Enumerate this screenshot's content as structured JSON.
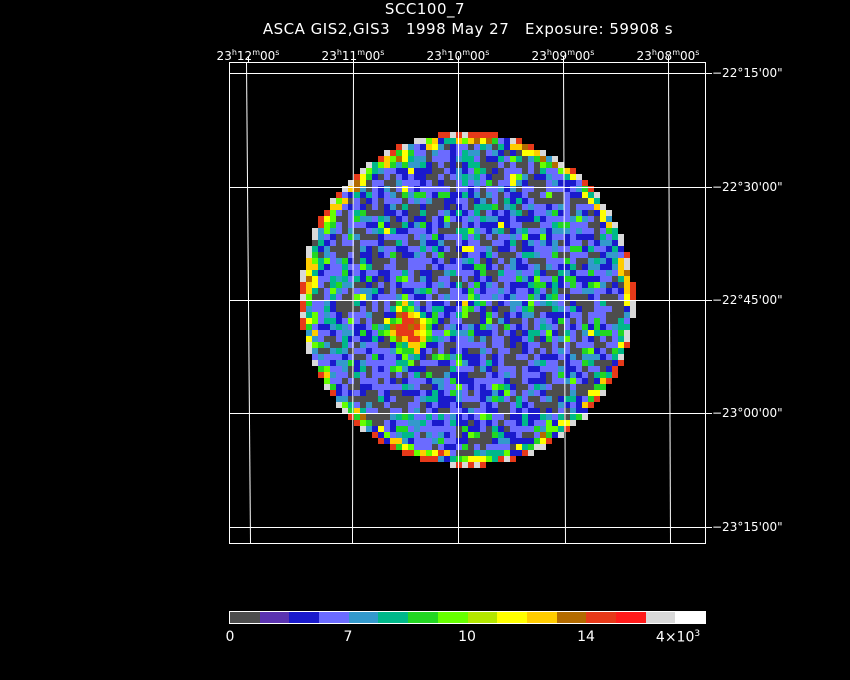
{
  "header": {
    "title": "SCC100_7",
    "subtitle": "ASCA GIS2,GIS3   1998 May 27   Exposure: 59908 s"
  },
  "axes": {
    "ra_ticks": [
      {
        "h": "23",
        "m": "12",
        "s": "00"
      },
      {
        "h": "23",
        "m": "11",
        "s": "00"
      },
      {
        "h": "23",
        "m": "10",
        "s": "00"
      },
      {
        "h": "23",
        "m": "09",
        "s": "00"
      },
      {
        "h": "23",
        "m": "08",
        "s": "00"
      }
    ],
    "dec_ticks": [
      "−22°15'00\"",
      "−22°30'00\"",
      "−22°45'00\"",
      "−23°00'00\"",
      "−23°15'00\""
    ]
  },
  "colorbar": {
    "colors": [
      "#4d4d4d",
      "#5b33b0",
      "#1a1acc",
      "#6b6bff",
      "#3399cc",
      "#00b88a",
      "#22d622",
      "#66ff00",
      "#b3e600",
      "#ffff00",
      "#ffcc00",
      "#b36b00",
      "#e63919",
      "#ff1a1a",
      "#d9d9d9",
      "#ffffff"
    ],
    "labels": [
      "0",
      "7",
      "10",
      "14"
    ],
    "last_label_base": "4×10",
    "last_label_exp": "3"
  }
}
